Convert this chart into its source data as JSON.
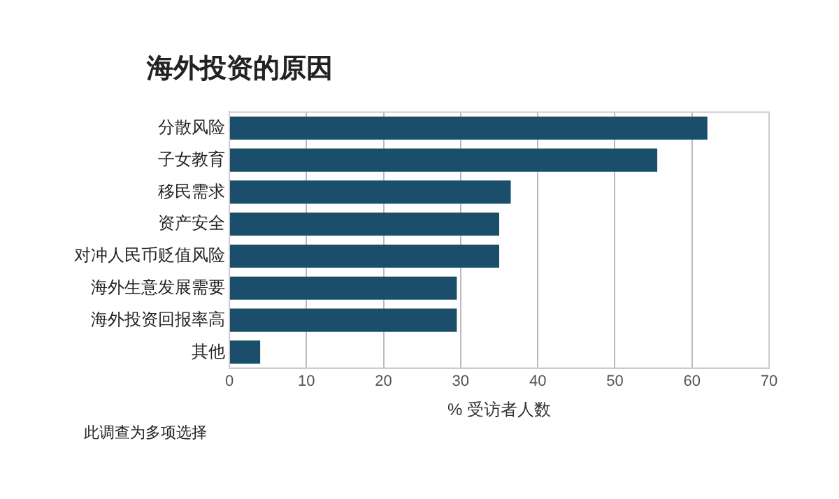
{
  "chart_data": {
    "type": "bar",
    "orientation": "horizontal",
    "title": "海外投资的原因",
    "xlabel": "% 受访者人数",
    "categories": [
      "分散风险",
      "子女教育",
      "移民需求",
      "资产安全",
      "对冲人民币贬值风险",
      "海外生意发展需要",
      "海外投资回报率高",
      "其他"
    ],
    "values": [
      62,
      55.5,
      36.5,
      35,
      35,
      29.5,
      29.5,
      4
    ],
    "color": "#1b4e6b",
    "xlim": [
      0,
      70
    ],
    "xticks": [
      0,
      10,
      20,
      30,
      40,
      50,
      60,
      70
    ],
    "grid": "x",
    "annotations": [
      "此调查为多项选择"
    ]
  }
}
